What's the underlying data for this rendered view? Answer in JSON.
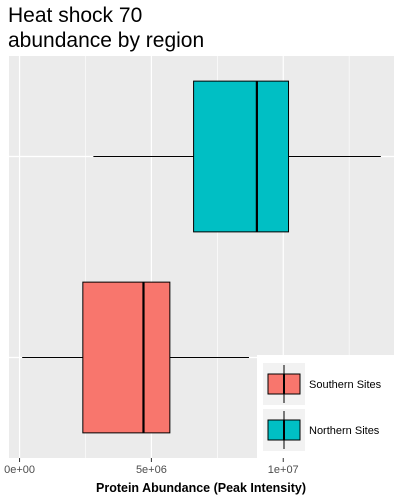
{
  "chart_data": {
    "type": "boxplot",
    "orientation": "horizontal",
    "title": [
      "Heat shock 70",
      "abundance by region"
    ],
    "xlabel": "Protein Abundance (Peak Intensity)",
    "ylabel": "",
    "xlim": [
      -400000,
      14200000
    ],
    "x_ticks": [
      0,
      5000000,
      10000000
    ],
    "x_tick_labels": [
      "0e+00",
      "5e+06",
      "1e+07"
    ],
    "grid": true,
    "legend_position": "bottom-right",
    "categories": [
      "Southern Sites",
      "Northern Sites"
    ],
    "series": [
      {
        "name": "Southern Sites",
        "color": "#F8766D",
        "whisker_low": 100000,
        "q1": 2400000,
        "median": 4700000,
        "q3": 5700000,
        "whisker_high": 8700000
      },
      {
        "name": "Northern Sites",
        "color": "#00BFC4",
        "whisker_low": 2800000,
        "q1": 6600000,
        "median": 9000000,
        "q3": 10200000,
        "whisker_high": 13700000
      }
    ]
  }
}
